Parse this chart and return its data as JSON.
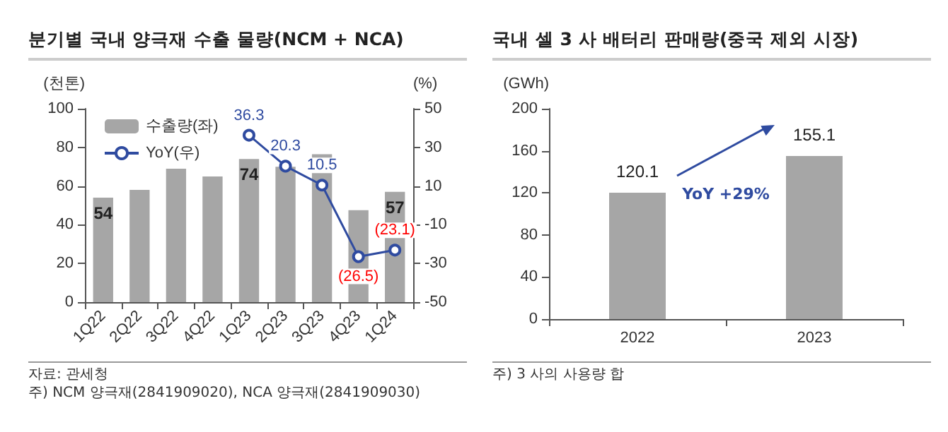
{
  "chart_data": [
    {
      "type": "bar",
      "title": "분기별 국내 양극재 수출 물량(NCM + NCA)",
      "ylabel": "(천톤)",
      "y2label": "(%)",
      "categories": [
        "1Q22",
        "2Q22",
        "3Q22",
        "4Q22",
        "1Q23",
        "2Q23",
        "3Q23",
        "4Q23",
        "1Q24"
      ],
      "series": [
        {
          "name": "수출량(좌)",
          "type": "bar",
          "color": "#a6a6a6",
          "values": [
            54,
            58,
            69,
            65,
            74,
            70,
            76.5,
            47.5,
            57
          ],
          "value_labels": [
            "54",
            null,
            null,
            null,
            "74",
            null,
            null,
            null,
            "57"
          ]
        },
        {
          "name": "YoY(우)",
          "type": "line",
          "axis": "y2",
          "color": "#2f4ba0",
          "values": [
            null,
            null,
            null,
            null,
            36.3,
            20.3,
            10.5,
            -26.5,
            -23.1
          ],
          "value_labels": [
            null,
            null,
            null,
            null,
            "36.3",
            "20.3",
            "10.5",
            "(26.5)",
            "(23.1)"
          ]
        }
      ],
      "ylim": [
        0,
        100
      ],
      "yticks": [
        0,
        20,
        40,
        60,
        80,
        100
      ],
      "y2lim": [
        -50,
        50
      ],
      "y2ticks": [
        -50,
        -30,
        -10,
        10,
        30,
        50
      ],
      "grid": false,
      "legend": "top left",
      "marker": "circle",
      "line_style": "solid",
      "annotations": [
        "자료: 관세청",
        "주) NCM 양극재(2841909020), NCA 양극재(2841909030)"
      ]
    },
    {
      "type": "bar",
      "title": "국내 셀 3 사 배터리 판매량(중국 제외 시장)",
      "ylabel": "(GWh)",
      "categories": [
        "2022",
        "2023"
      ],
      "values": [
        120.1,
        155.1
      ],
      "color": "#a6a6a6",
      "data_labels": true,
      "ylim": [
        0,
        200
      ],
      "yticks": [
        0,
        40,
        80,
        120,
        160,
        200
      ],
      "grid": false,
      "legend": false,
      "annotations": [
        "YoY +29%",
        "주) 3 사의 사용량 합"
      ]
    }
  ]
}
